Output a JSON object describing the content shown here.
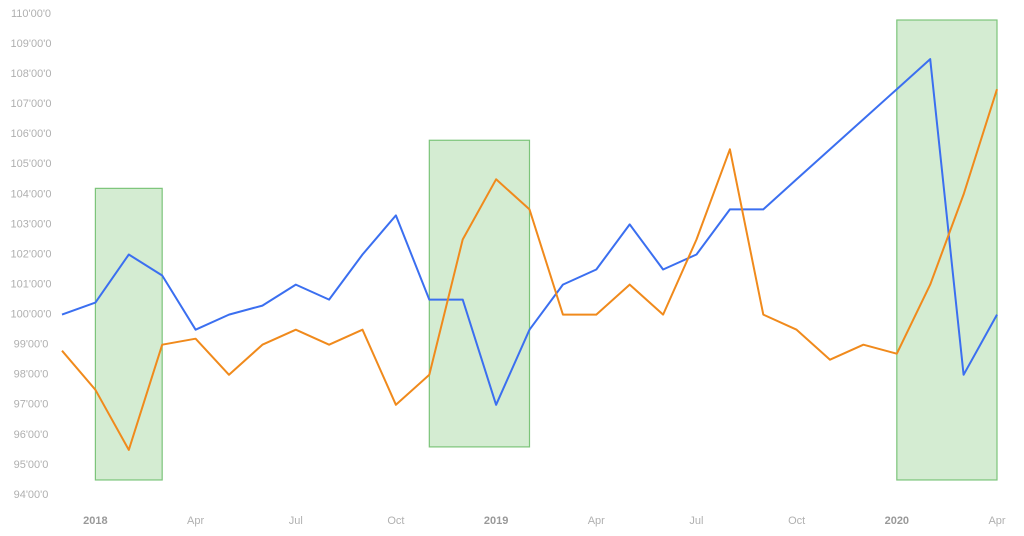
{
  "chart_data": {
    "type": "line",
    "x": [
      "2017-12",
      "2018-01",
      "2018-02",
      "2018-03",
      "2018-04",
      "2018-05",
      "2018-06",
      "2018-07",
      "2018-08",
      "2018-09",
      "2018-10",
      "2018-11",
      "2018-12",
      "2019-01",
      "2019-02",
      "2019-03",
      "2019-04",
      "2019-05",
      "2019-06",
      "2019-07",
      "2019-08",
      "2019-09",
      "2019-10",
      "2019-11",
      "2019-12",
      "2020-01",
      "2020-02",
      "2020-03",
      "2020-04"
    ],
    "series": [
      {
        "color": "#3b6ff0",
        "values": [
          100,
          100.4,
          102,
          101.3,
          99.5,
          100,
          100.3,
          101,
          100.5,
          102,
          103.3,
          100.5,
          100.5,
          97,
          99.5,
          101,
          101.5,
          103,
          101.5,
          102,
          103.5,
          103.5,
          104.5,
          105.5,
          106.5,
          107.5,
          108.5,
          98,
          100
        ]
      },
      {
        "color": "#f08a1c",
        "values": [
          98.8,
          97.5,
          95.5,
          99,
          99.2,
          98,
          99,
          99.5,
          99,
          99.5,
          97,
          98,
          102.5,
          104.5,
          103.5,
          100,
          100,
          101,
          100,
          102.5,
          105.5,
          100,
          99.5,
          98.5,
          99,
          98.7,
          101,
          104,
          107.5
        ]
      }
    ],
    "highlights": [
      {
        "x": [
          "2018-01",
          "2018-03"
        ],
        "y": [
          94.5,
          104.2
        ]
      },
      {
        "x": [
          "2018-11",
          "2019-02"
        ],
        "y": [
          95.6,
          105.8
        ]
      },
      {
        "x": [
          "2020-01",
          "2020-04"
        ],
        "y": [
          94.5,
          109.8
        ]
      }
    ],
    "highlight_color": "#d4ecd2",
    "xlim": [
      "2017-12",
      "2020-04"
    ],
    "xticks": [
      {
        "value": "2018-01",
        "label": "2018"
      },
      {
        "value": "2018-04",
        "label": "Apr"
      },
      {
        "value": "2018-07",
        "label": "Jul"
      },
      {
        "value": "2018-10",
        "label": "Oct"
      },
      {
        "value": "2019-01",
        "label": "2019"
      },
      {
        "value": "2019-04",
        "label": "Apr"
      },
      {
        "value": "2019-07",
        "label": "Jul"
      },
      {
        "value": "2019-10",
        "label": "Oct"
      },
      {
        "value": "2020-01",
        "label": "2020"
      },
      {
        "value": "2020-04",
        "label": "Apr"
      }
    ],
    "ylim": [
      94,
      110
    ],
    "yticks": [
      {
        "value": 94,
        "label": "94'00'0"
      },
      {
        "value": 95,
        "label": "95'00'0"
      },
      {
        "value": 96,
        "label": "96'00'0"
      },
      {
        "value": 97,
        "label": "97'00'0"
      },
      {
        "value": 98,
        "label": "98'00'0"
      },
      {
        "value": 99,
        "label": "99'00'0"
      },
      {
        "value": 100,
        "label": "100'00'0"
      },
      {
        "value": 101,
        "label": "101'00'0"
      },
      {
        "value": 102,
        "label": "102'00'0"
      },
      {
        "value": 103,
        "label": "103'00'0"
      },
      {
        "value": 104,
        "label": "104'00'0"
      },
      {
        "value": 105,
        "label": "105'00'0"
      },
      {
        "value": 106,
        "label": "106'00'0"
      },
      {
        "value": 107,
        "label": "107'00'0"
      },
      {
        "value": 108,
        "label": "108'00'0"
      },
      {
        "value": 109,
        "label": "109'00'0"
      },
      {
        "value": 110,
        "label": "110'00'0"
      }
    ],
    "grid": false
  }
}
